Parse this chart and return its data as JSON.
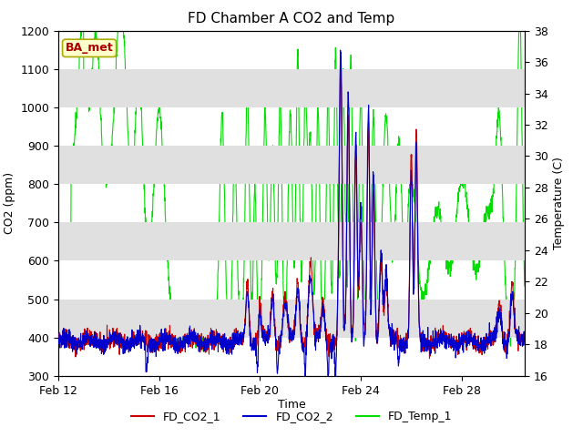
{
  "title": "FD Chamber A CO2 and Temp",
  "xlabel": "Time",
  "ylabel_left": "CO2 (ppm)",
  "ylabel_right": "Temperature (C)",
  "ylim_left": [
    300,
    1200
  ],
  "ylim_right": [
    16,
    38
  ],
  "yticks_left": [
    300,
    400,
    500,
    600,
    700,
    800,
    900,
    1000,
    1100,
    1200
  ],
  "yticks_right": [
    16,
    18,
    20,
    22,
    24,
    26,
    28,
    30,
    32,
    34,
    36,
    38
  ],
  "xtick_labels": [
    "Feb 12",
    "Feb 16",
    "Feb 20",
    "Feb 24",
    "Feb 28"
  ],
  "xtick_positions": [
    0,
    4,
    8,
    12,
    16
  ],
  "total_days": 18.5,
  "color_co2_1": "#cc0000",
  "color_co2_2": "#0000cc",
  "color_temp": "#00dd00",
  "legend_labels": [
    "FD_CO2_1",
    "FD_CO2_2",
    "FD_Temp_1"
  ],
  "annotation_text": "BA_met",
  "annotation_color": "#aa0000",
  "annotation_bg": "#ffffcc",
  "annotation_edge": "#aaaa00",
  "bg_band_color": "#e0e0e0",
  "title_fontsize": 11,
  "label_fontsize": 9,
  "tick_fontsize": 9,
  "legend_fontsize": 9,
  "linewidth": 0.8
}
